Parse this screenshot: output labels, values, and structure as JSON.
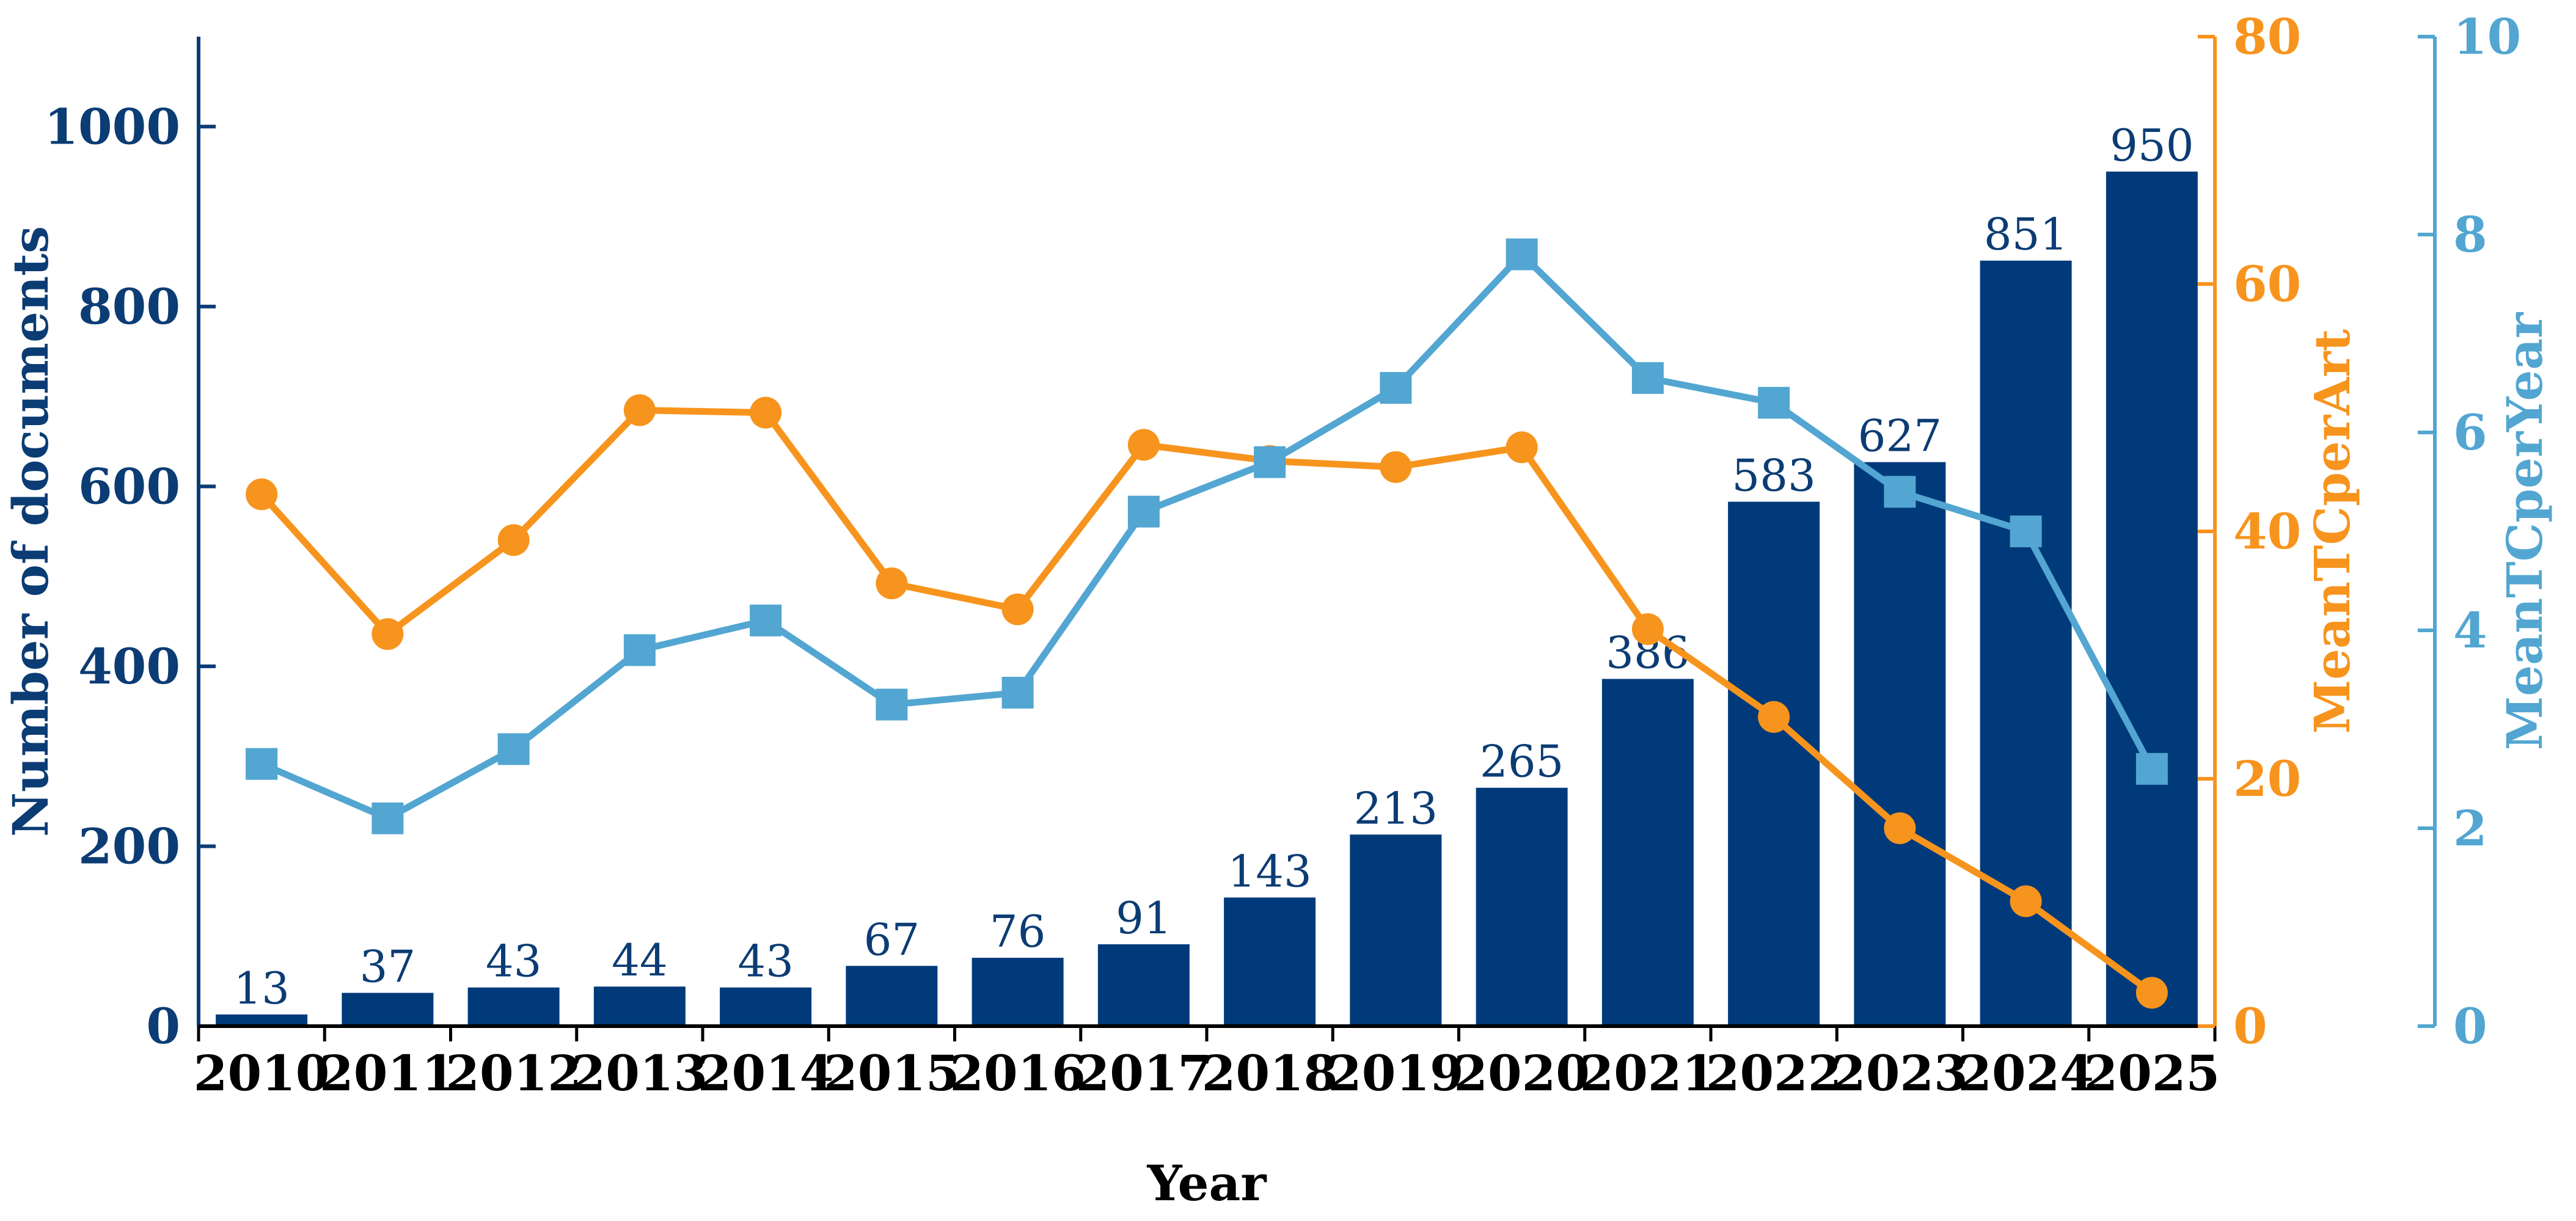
{
  "colors": {
    "bars": "#003a7a",
    "art_line": "#f7941d",
    "year_line": "#52a6d1",
    "axis_left": "#0b3c74",
    "bar_label_text": "#0b3c74"
  },
  "chart_data": {
    "type": "bar",
    "categories": [
      "2010",
      "2011",
      "2012",
      "2013",
      "2014",
      "2015",
      "2016",
      "2017",
      "2018",
      "2019",
      "2020",
      "2021",
      "2022",
      "2023",
      "2024",
      "2025"
    ],
    "xlabel": "Year",
    "ylabel": "Number of documents",
    "ylim": [
      0,
      1100
    ],
    "y_ticks": [
      0,
      200,
      400,
      600,
      800,
      1000
    ],
    "grid": false,
    "series": [
      {
        "type": "bar",
        "axis": "left",
        "values": [
          13,
          37,
          43,
          44,
          43,
          67,
          76,
          91,
          143,
          213,
          265,
          386,
          583,
          627,
          851,
          950
        ],
        "data_labels": [
          "13",
          "37",
          "43",
          "44",
          "43",
          "67",
          "76",
          "91",
          "143",
          "213",
          "265",
          "386",
          "583",
          "627",
          "851",
          "950"
        ]
      },
      {
        "type": "line",
        "axis": "right1",
        "marker": "circle",
        "values": [
          43.0,
          31.7,
          39.3,
          49.8,
          49.6,
          35.8,
          33.7,
          47.0,
          45.7,
          45.2,
          46.8,
          32.1,
          25.0,
          16.0,
          10.1,
          2.7
        ]
      },
      {
        "type": "line",
        "axis": "right2",
        "marker": "square",
        "values": [
          2.65,
          2.1,
          2.8,
          3.8,
          4.1,
          3.25,
          3.37,
          5.2,
          5.7,
          6.45,
          7.8,
          6.55,
          6.3,
          5.4,
          5.0,
          2.6
        ]
      }
    ],
    "right_axes": [
      {
        "id": "right1",
        "label": "MeanTCperArt",
        "ylim": [
          0,
          80
        ],
        "ticks": [
          0,
          20,
          40,
          60,
          80
        ]
      },
      {
        "id": "right2",
        "label": "MeanTCperYear",
        "ylim": [
          0,
          10
        ],
        "ticks": [
          0,
          2,
          4,
          6,
          8,
          10
        ]
      }
    ]
  }
}
